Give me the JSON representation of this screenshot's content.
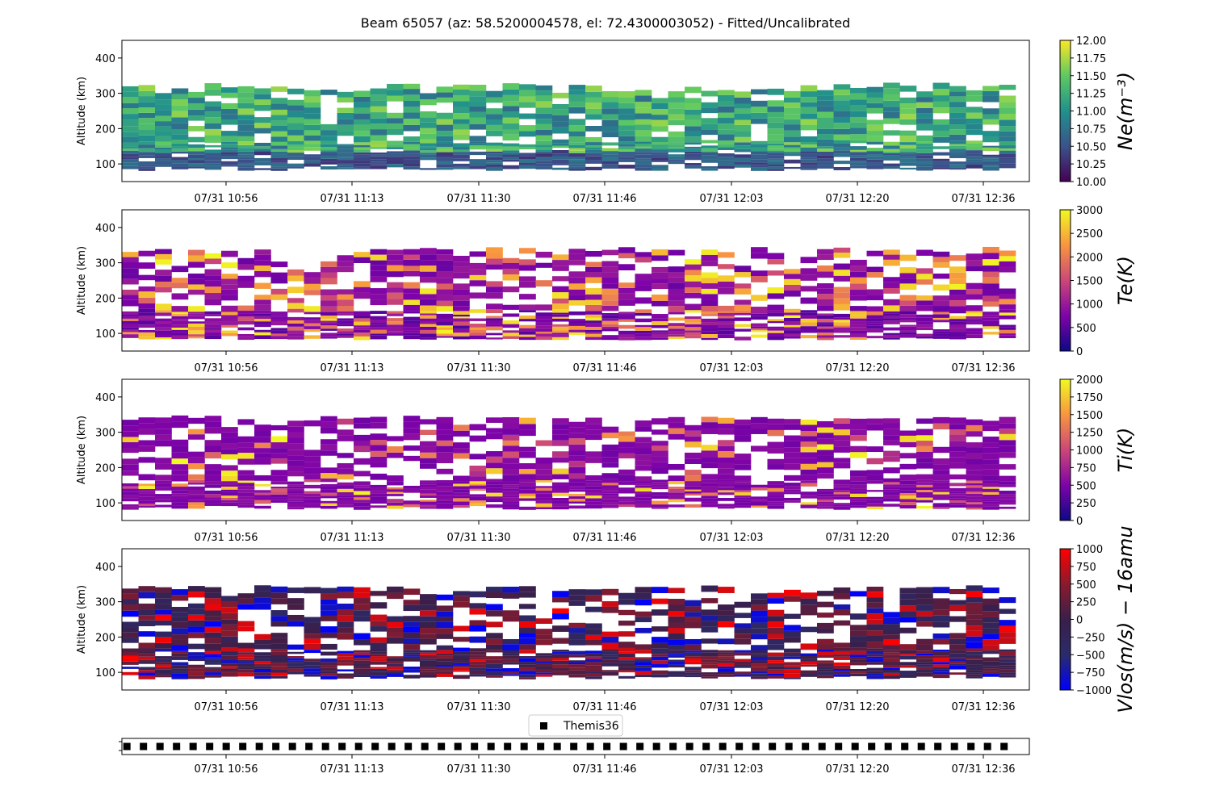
{
  "figure": {
    "title": "Beam 65057 (az: 58.5200004578, el: 72.4300003052) - Fitted/Uncalibrated"
  },
  "chart_data": [
    {
      "type": "heatmap",
      "ylabel": "Altitude (km)",
      "xticks": [
        "07/31 10:56",
        "07/31 11:13",
        "07/31 11:30",
        "07/31 11:46",
        "07/31 12:03",
        "07/31 12:20",
        "07/31 12:36"
      ],
      "yticks": [
        100,
        200,
        300,
        400
      ],
      "ylim": [
        50,
        450
      ],
      "colorbar": {
        "label": "Ne(m⁻³)",
        "ticks": [
          "10.00",
          "10.25",
          "10.50",
          "10.75",
          "11.00",
          "11.25",
          "11.50",
          "11.75",
          "12.00"
        ],
        "range": [
          10.0,
          12.0
        ],
        "colormap": "viridis",
        "colors": [
          "#440154",
          "#3b528b",
          "#21918c",
          "#5ec962",
          "#fde725"
        ]
      }
    },
    {
      "type": "heatmap",
      "ylabel": "Altitude (km)",
      "xticks": [
        "07/31 10:56",
        "07/31 11:13",
        "07/31 11:30",
        "07/31 11:46",
        "07/31 12:03",
        "07/31 12:20",
        "07/31 12:36"
      ],
      "yticks": [
        100,
        200,
        300,
        400
      ],
      "ylim": [
        50,
        450
      ],
      "colorbar": {
        "label": "Te(K)",
        "ticks": [
          "0",
          "500",
          "1000",
          "1500",
          "2000",
          "2500",
          "3000"
        ],
        "range": [
          0,
          3000
        ],
        "colormap": "plasma",
        "colors": [
          "#0d0887",
          "#7e03a8",
          "#cc4778",
          "#f89540",
          "#f0f921"
        ]
      }
    },
    {
      "type": "heatmap",
      "ylabel": "Altitude (km)",
      "xticks": [
        "07/31 10:56",
        "07/31 11:13",
        "07/31 11:30",
        "07/31 11:46",
        "07/31 12:03",
        "07/31 12:20",
        "07/31 12:36"
      ],
      "yticks": [
        100,
        200,
        300,
        400
      ],
      "ylim": [
        50,
        450
      ],
      "colorbar": {
        "label": "Ti(K)",
        "ticks": [
          "0",
          "250",
          "500",
          "750",
          "1000",
          "1250",
          "1500",
          "1750",
          "2000"
        ],
        "range": [
          0,
          2000
        ],
        "colormap": "plasma",
        "colors": [
          "#0d0887",
          "#7e03a8",
          "#cc4778",
          "#f89540",
          "#f0f921"
        ]
      }
    },
    {
      "type": "heatmap",
      "ylabel": "Altitude (km)",
      "xticks": [
        "07/31 10:56",
        "07/31 11:13",
        "07/31 11:30",
        "07/31 11:46",
        "07/31 12:03",
        "07/31 12:20",
        "07/31 12:36"
      ],
      "yticks": [
        100,
        200,
        300,
        400
      ],
      "ylim": [
        50,
        450
      ],
      "colorbar": {
        "label": "Vlos(m/s) − 16amu",
        "ticks": [
          "−1000",
          "−750",
          "−500",
          "−250",
          "0",
          "250",
          "500",
          "750",
          "1000"
        ],
        "range": [
          -1000,
          1000
        ],
        "colormap": "bwr",
        "colors": [
          "#0000ff",
          "#2b2b6b",
          "#3a1f4a",
          "#8a1a2e",
          "#ff0000"
        ]
      }
    },
    {
      "type": "scatter",
      "legend": "Themis36",
      "legend_position": "top-center",
      "marker": "square",
      "marker_color": "#000000",
      "xticks": [
        "07/31 10:56",
        "07/31 11:13",
        "07/31 11:30",
        "07/31 11:46",
        "07/31 12:03",
        "07/31 12:20",
        "07/31 12:36"
      ],
      "point_count": 54
    }
  ]
}
